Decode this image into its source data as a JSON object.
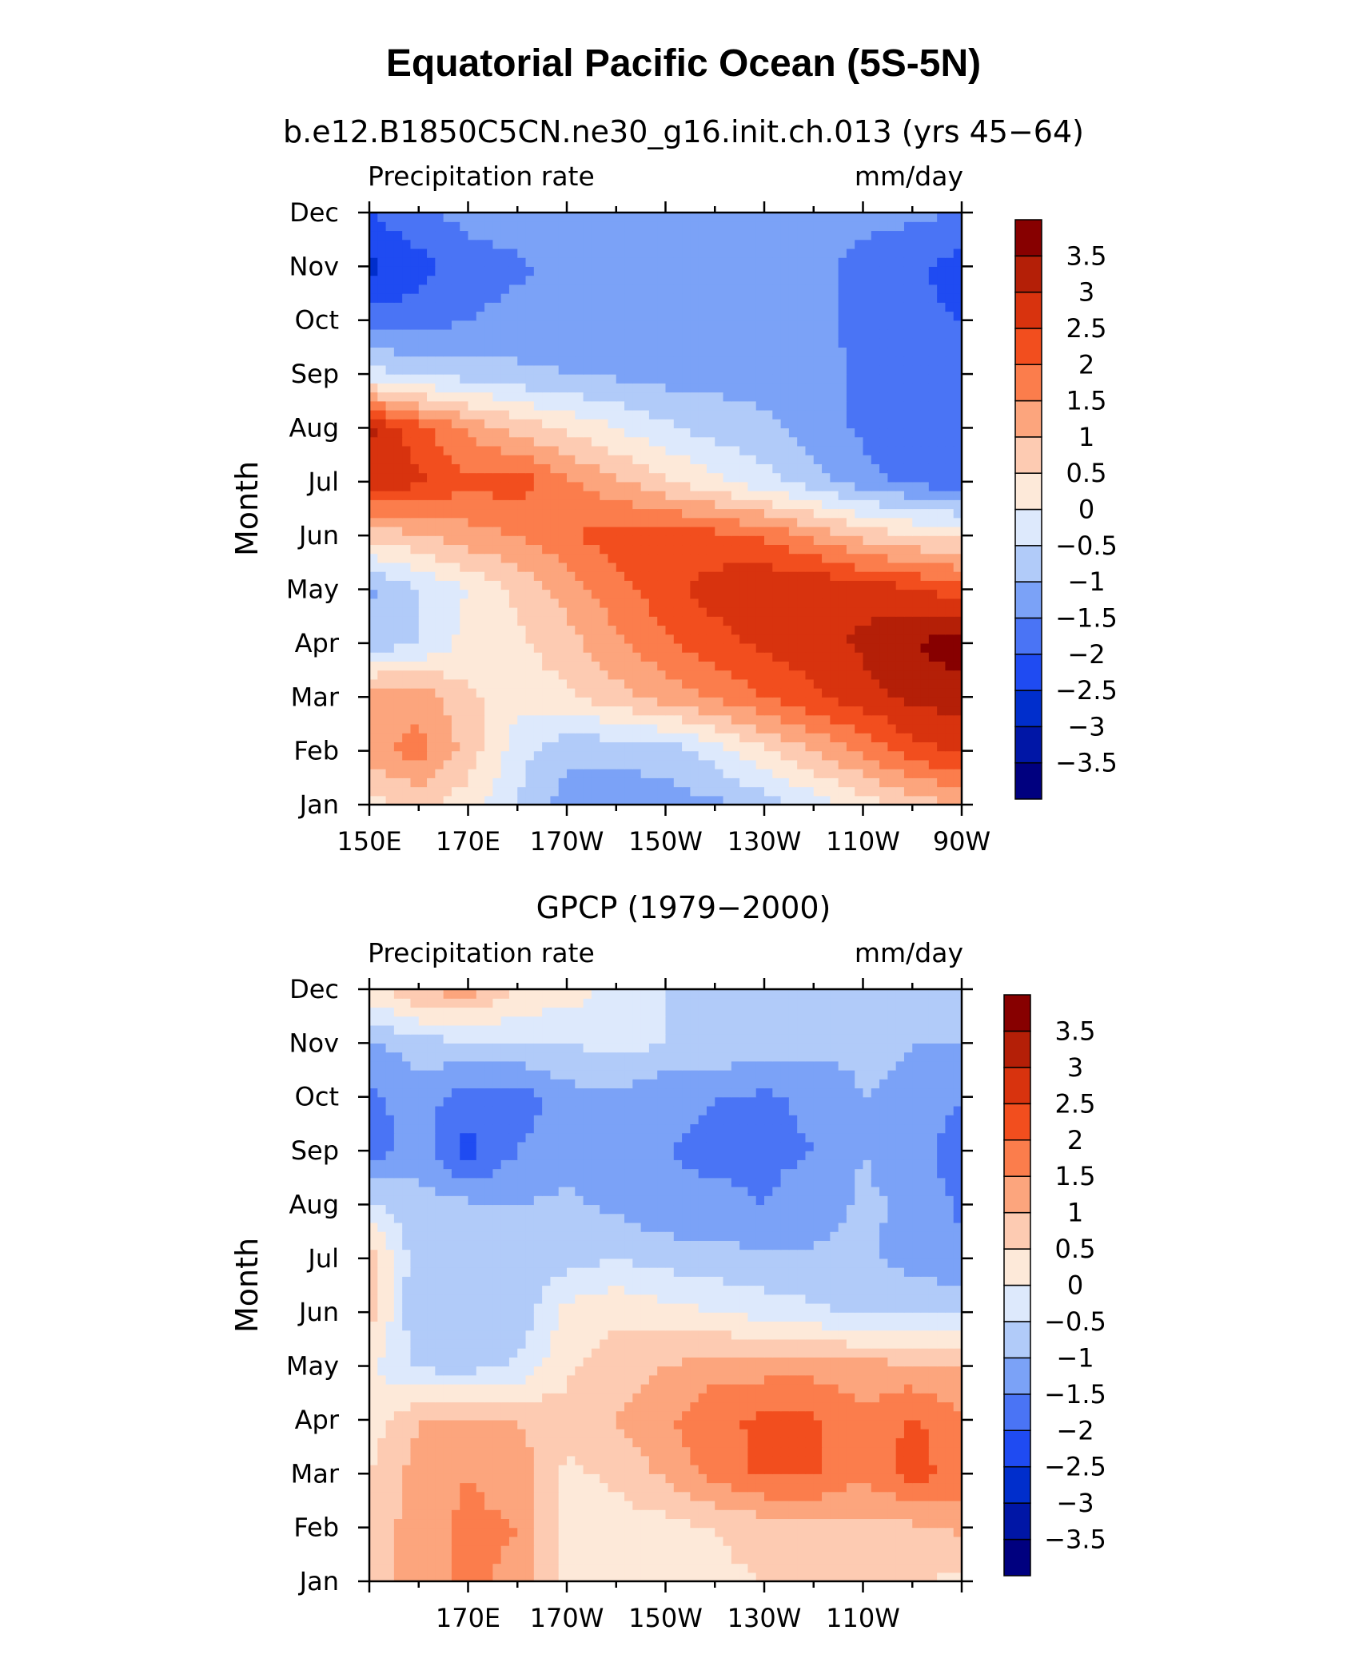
{
  "title": "Equatorial Pacific Ocean (5S-5N)",
  "colormap": [
    "#00007f",
    "#0016a6",
    "#002ecc",
    "#1f4bf2",
    "#4a74f5",
    "#7ba2f7",
    "#b1cbf9",
    "#dde9fc",
    "#fde9d9",
    "#fdcbb2",
    "#fca57d",
    "#fb7d4c",
    "#f24e1e",
    "#d8330e",
    "#b41f07",
    "#870000"
  ],
  "levels": [
    "3.5",
    "3",
    "2.5",
    "2",
    "1.5",
    "1",
    "0.5",
    "0",
    "−0.5",
    "−1",
    "−1.5",
    "−2",
    "−2.5",
    "−3",
    "−3.5"
  ],
  "chart_data": [
    {
      "type": "heatmap",
      "title": "b.e12.B1850C5CN.ne30_g16.init.ch.013 (yrs 45−64)",
      "left_label": "Precipitation rate",
      "right_label": "mm/day",
      "ylabel": "Month",
      "xlabels": [
        "150E",
        "170E",
        "170W",
        "150W",
        "130W",
        "110W",
        "90W"
      ],
      "ylabels": [
        "Jan",
        "Feb",
        "Mar",
        "Apr",
        "May",
        "Jun",
        "Jul",
        "Aug",
        "Sep",
        "Oct",
        "Nov",
        "Dec"
      ],
      "xlim": [
        150,
        270
      ],
      "ylim": [
        1,
        12
      ],
      "zlim": [
        -4,
        4
      ],
      "x": [
        150,
        160,
        170,
        180,
        190,
        200,
        210,
        220,
        230,
        240,
        250,
        260,
        270
      ],
      "y": [
        1,
        2,
        3,
        4,
        5,
        6,
        7,
        8,
        9,
        10,
        11,
        12
      ],
      "z": [
        [
          0.3,
          0.6,
          0.2,
          -0.5,
          -1.2,
          -1.2,
          -1.2,
          -1.1,
          -0.8,
          -0.3,
          0.2,
          0.7,
          1.0
        ],
        [
          1.3,
          1.7,
          0.8,
          -0.3,
          -0.9,
          -0.9,
          -0.8,
          -0.3,
          0.4,
          1.0,
          1.6,
          2.3,
          2.6
        ],
        [
          1.4,
          1.3,
          0.6,
          0.2,
          0.4,
          0.8,
          1.2,
          1.6,
          2.0,
          2.4,
          2.8,
          3.1,
          3.3
        ],
        [
          -0.8,
          -0.5,
          0.2,
          0.4,
          0.8,
          1.4,
          1.9,
          2.3,
          2.6,
          2.8,
          3.1,
          3.5,
          3.8
        ],
        [
          -1.1,
          -0.5,
          0.0,
          0.6,
          1.2,
          1.8,
          2.3,
          2.7,
          3.0,
          3.0,
          2.8,
          2.6,
          2.2
        ],
        [
          0.7,
          0.9,
          1.3,
          1.5,
          1.9,
          2.3,
          2.3,
          2.2,
          1.9,
          1.4,
          0.8,
          0.5,
          0.4
        ],
        [
          2.9,
          2.6,
          2.1,
          2.3,
          1.6,
          1.1,
          0.6,
          0.1,
          -0.3,
          -0.8,
          -1.3,
          -1.6,
          -1.8
        ],
        [
          3.1,
          2.2,
          1.4,
          0.8,
          0.4,
          0.0,
          -0.4,
          -0.7,
          -0.9,
          -1.2,
          -1.6,
          -2.0,
          -2.0
        ],
        [
          -0.3,
          -0.6,
          -0.7,
          -0.9,
          -1.0,
          -1.1,
          -1.2,
          -1.2,
          -1.2,
          -1.3,
          -1.6,
          -1.8,
          -1.9
        ],
        [
          -1.8,
          -1.7,
          -1.5,
          -1.3,
          -1.2,
          -1.2,
          -1.2,
          -1.2,
          -1.2,
          -1.3,
          -1.7,
          -1.9,
          -2.0
        ],
        [
          -2.6,
          -2.2,
          -1.8,
          -1.6,
          -1.3,
          -1.2,
          -1.2,
          -1.2,
          -1.2,
          -1.3,
          -1.7,
          -1.9,
          -2.2
        ],
        [
          -2.0,
          -1.6,
          -1.3,
          -1.2,
          -1.2,
          -1.2,
          -1.2,
          -1.2,
          -1.2,
          -1.2,
          -1.3,
          -1.4,
          -1.5
        ]
      ]
    },
    {
      "type": "heatmap",
      "title": "GPCP (1979−2000)",
      "left_label": "Precipitation rate",
      "right_label": "mm/day",
      "ylabel": "Month",
      "xlabels": [
        "170E",
        "170W",
        "150W",
        "130W",
        "110W"
      ],
      "ylabels": [
        "Jan",
        "Feb",
        "Mar",
        "Apr",
        "May",
        "Jun",
        "Jul",
        "Aug",
        "Sep",
        "Oct",
        "Nov",
        "Dec"
      ],
      "xlim": [
        150,
        270
      ],
      "ylim": [
        1,
        12
      ],
      "zlim": [
        -4,
        4
      ],
      "x": [
        150,
        160,
        170,
        180,
        190,
        200,
        210,
        220,
        230,
        240,
        250,
        260,
        270
      ],
      "y": [
        1,
        2,
        3,
        4,
        5,
        6,
        7,
        8,
        9,
        10,
        11,
        12
      ],
      "z": [
        [
          0.7,
          1.3,
          1.6,
          1.4,
          0.4,
          0.3,
          0.2,
          0.4,
          0.5,
          0.5,
          0.5,
          0.5,
          0.4
        ],
        [
          0.6,
          1.3,
          1.6,
          1.5,
          0.3,
          0.3,
          0.3,
          0.5,
          0.7,
          0.8,
          0.8,
          0.9,
          1.1
        ],
        [
          0.5,
          1.2,
          1.5,
          1.3,
          0.4,
          0.6,
          1.1,
          1.7,
          2.1,
          2.1,
          1.6,
          2.2,
          1.8
        ],
        [
          0.2,
          1.0,
          1.1,
          1.0,
          0.7,
          1.0,
          1.4,
          1.9,
          2.1,
          2.1,
          1.6,
          2.1,
          1.6
        ],
        [
          0.1,
          -0.6,
          -0.7,
          -0.4,
          0.4,
          0.7,
          1.0,
          1.3,
          1.3,
          1.3,
          1.2,
          1.1,
          1.0
        ],
        [
          0.8,
          -1.0,
          -1.0,
          -0.9,
          0.2,
          0.4,
          0.2,
          0.0,
          -0.2,
          -0.4,
          -0.6,
          -0.6,
          -0.6
        ],
        [
          0.8,
          -0.9,
          -0.9,
          -0.9,
          -0.7,
          -0.5,
          -0.7,
          -0.8,
          -0.9,
          -0.9,
          -0.9,
          -1.2,
          -1.4
        ],
        [
          -0.4,
          -0.8,
          -0.9,
          -1.0,
          -0.9,
          -1.1,
          -1.4,
          -1.4,
          -1.5,
          -1.3,
          -0.9,
          -1.1,
          -1.6
        ],
        [
          -1.8,
          -1.2,
          -2.2,
          -1.5,
          -1.2,
          -1.3,
          -1.5,
          -1.6,
          -1.6,
          -1.5,
          -1.0,
          -1.3,
          -1.8
        ],
        [
          -1.6,
          -1.3,
          -1.7,
          -1.8,
          -1.2,
          -1.1,
          -1.4,
          -1.5,
          -1.6,
          -1.4,
          -1.0,
          -1.1,
          -1.5
        ],
        [
          -1.1,
          -0.7,
          -0.6,
          -0.5,
          -0.5,
          -0.3,
          -0.5,
          -0.6,
          -0.7,
          -0.8,
          -0.9,
          -1.0,
          -1.0
        ],
        [
          0.3,
          1.0,
          1.3,
          0.4,
          0.3,
          -0.2,
          -0.5,
          -0.8,
          -0.9,
          -0.9,
          -0.9,
          -1.0,
          -1.0
        ]
      ]
    }
  ]
}
